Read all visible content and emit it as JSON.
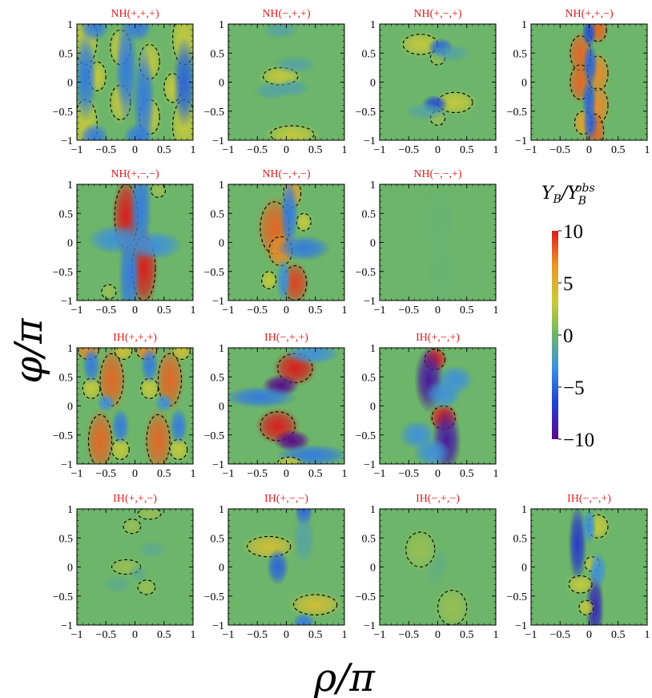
{
  "chart_data": {
    "type": "heatmap",
    "xlabel": "ρ/π",
    "ylabel": "φ/π",
    "xlim": [
      -1,
      1
    ],
    "ylim": [
      -1,
      1
    ],
    "x_ticks": [
      "−1",
      "−0.5",
      "0",
      "0.5",
      "1"
    ],
    "y_ticks": [
      "1",
      "0.5",
      "0",
      "−0.5",
      "−1"
    ],
    "colorbar": {
      "label": "Y_B/Y_B^obs",
      "range": [
        -10,
        10
      ],
      "tick_labels": [
        "10",
        "5",
        "0",
        "−5",
        "−10"
      ],
      "colors": [
        "#5a0a8a",
        "#1f3fd0",
        "#3c8fe0",
        "#6db56a",
        "#c9c93a",
        "#e89a2a",
        "#d91e1e"
      ]
    },
    "panels": [
      {
        "title": "NH(+,+,+)",
        "blobs": [
          {
            "x": -0.85,
            "y": 0.75,
            "sx": 0.08,
            "sy": 0.18,
            "v": 3
          },
          {
            "x": -0.85,
            "y": -0.75,
            "sx": 0.08,
            "sy": 0.18,
            "v": 3
          },
          {
            "x": 0.85,
            "y": 0.75,
            "sx": 0.08,
            "sy": 0.18,
            "v": 3
          },
          {
            "x": 0.85,
            "y": -0.75,
            "sx": 0.08,
            "sy": 0.18,
            "v": 3
          },
          {
            "x": -0.25,
            "y": 0.6,
            "sx": 0.07,
            "sy": 0.12,
            "v": 3
          },
          {
            "x": -0.25,
            "y": -0.35,
            "sx": 0.07,
            "sy": 0.12,
            "v": 3
          },
          {
            "x": 0.25,
            "y": 0.35,
            "sx": 0.07,
            "sy": 0.12,
            "v": 3
          },
          {
            "x": 0.25,
            "y": -0.6,
            "sx": 0.07,
            "sy": 0.12,
            "v": 3
          },
          {
            "x": -0.65,
            "y": 0.1,
            "sx": 0.06,
            "sy": 0.1,
            "v": 3
          },
          {
            "x": 0.65,
            "y": -0.1,
            "sx": 0.06,
            "sy": 0.1,
            "v": 3
          },
          {
            "x": -0.85,
            "y": 0.1,
            "sx": 0.06,
            "sy": 0.25,
            "v": -4
          },
          {
            "x": 0.85,
            "y": 0,
            "sx": 0.06,
            "sy": 0.25,
            "v": -5
          },
          {
            "x": -0.15,
            "y": 0.25,
            "sx": 0.06,
            "sy": 0.3,
            "v": -4
          },
          {
            "x": 0.15,
            "y": -0.3,
            "sx": 0.06,
            "sy": 0.3,
            "v": -4
          },
          {
            "x": -0.7,
            "y": 0.95,
            "sx": 0.08,
            "sy": 0.08,
            "v": -4
          },
          {
            "x": 0.05,
            "y": 0.95,
            "sx": 0.08,
            "sy": 0.08,
            "v": -4
          },
          {
            "x": -0.7,
            "y": -0.95,
            "sx": 0.08,
            "sy": 0.08,
            "v": -4
          },
          {
            "x": 0.05,
            "y": -0.95,
            "sx": 0.08,
            "sy": 0.08,
            "v": -4
          }
        ]
      },
      {
        "title": "NH(−,+,+)",
        "blobs": [
          {
            "x": -0.1,
            "y": 0.1,
            "sx": 0.12,
            "sy": 0.06,
            "v": 3
          },
          {
            "x": 0.1,
            "y": -0.9,
            "sx": 0.15,
            "sy": 0.06,
            "v": 3
          },
          {
            "x": 0.15,
            "y": 0.3,
            "sx": 0.12,
            "sy": 0.05,
            "v": -2
          },
          {
            "x": -0.25,
            "y": -0.15,
            "sx": 0.1,
            "sy": 0.05,
            "v": -2
          },
          {
            "x": 0.1,
            "y": -0.1,
            "sx": 0.1,
            "sy": 0.05,
            "v": -2
          },
          {
            "x": -0.1,
            "y": 0.9,
            "sx": 0.1,
            "sy": 0.05,
            "v": -2
          }
        ]
      },
      {
        "title": "NH(+,−,+)",
        "blobs": [
          {
            "x": -0.3,
            "y": 0.65,
            "sx": 0.12,
            "sy": 0.07,
            "v": 3
          },
          {
            "x": 0.3,
            "y": -0.35,
            "sx": 0.12,
            "sy": 0.07,
            "v": 3
          },
          {
            "x": 0.0,
            "y": 0.42,
            "sx": 0.05,
            "sy": 0.05,
            "v": 2
          },
          {
            "x": 0.0,
            "y": -0.62,
            "sx": 0.05,
            "sy": 0.05,
            "v": 2
          },
          {
            "x": 0.05,
            "y": 0.6,
            "sx": 0.07,
            "sy": 0.05,
            "v": -5
          },
          {
            "x": -0.05,
            "y": -0.38,
            "sx": 0.07,
            "sy": 0.05,
            "v": -6
          },
          {
            "x": 0.2,
            "y": 0.5,
            "sx": 0.12,
            "sy": 0.05,
            "v": -2
          },
          {
            "x": -0.2,
            "y": -0.5,
            "sx": 0.12,
            "sy": 0.05,
            "v": -2
          }
        ]
      },
      {
        "title": "NH(+,+,−)",
        "blobs": [
          {
            "x": -0.15,
            "y": 0.5,
            "sx": 0.07,
            "sy": 0.12,
            "v": 8
          },
          {
            "x": -0.15,
            "y": 0,
            "sx": 0.07,
            "sy": 0.12,
            "v": 8
          },
          {
            "x": 0.15,
            "y": 0.15,
            "sx": 0.07,
            "sy": 0.12,
            "v": 7
          },
          {
            "x": 0.15,
            "y": -0.4,
            "sx": 0.07,
            "sy": 0.12,
            "v": 7
          },
          {
            "x": 0.1,
            "y": -0.85,
            "sx": 0.06,
            "sy": 0.12,
            "v": 8
          },
          {
            "x": -0.1,
            "y": -0.7,
            "sx": 0.06,
            "sy": 0.08,
            "v": 6
          },
          {
            "x": 0.15,
            "y": 0.9,
            "sx": 0.06,
            "sy": 0.08,
            "v": 8
          },
          {
            "x": 0.0,
            "y": 0.85,
            "sx": 0.04,
            "sy": 0.08,
            "v": -6
          },
          {
            "x": 0.02,
            "y": 0.3,
            "sx": 0.04,
            "sy": 0.12,
            "v": -5
          },
          {
            "x": 0.0,
            "y": -0.3,
            "sx": 0.04,
            "sy": 0.12,
            "v": -5
          },
          {
            "x": 0.02,
            "y": -0.7,
            "sx": 0.04,
            "sy": 0.1,
            "v": -5
          }
        ]
      },
      {
        "title": "NH(+,−,−)",
        "blobs": [
          {
            "x": -0.15,
            "y": 0.45,
            "sx": 0.08,
            "sy": 0.22,
            "v": 10
          },
          {
            "x": 0.15,
            "y": -0.45,
            "sx": 0.08,
            "sy": 0.22,
            "v": 10
          },
          {
            "x": -0.45,
            "y": -0.85,
            "sx": 0.05,
            "sy": 0.05,
            "v": 2
          },
          {
            "x": 0.4,
            "y": 0.9,
            "sx": 0.05,
            "sy": 0.05,
            "v": 2
          },
          {
            "x": 0.1,
            "y": 0.6,
            "sx": 0.06,
            "sy": 0.3,
            "v": -4
          },
          {
            "x": -0.1,
            "y": -0.55,
            "sx": 0.06,
            "sy": 0.3,
            "v": -4
          },
          {
            "x": -0.35,
            "y": 0.05,
            "sx": 0.15,
            "sy": 0.08,
            "v": -3
          },
          {
            "x": 0.35,
            "y": -0.05,
            "sx": 0.15,
            "sy": 0.08,
            "v": -3
          }
        ]
      },
      {
        "title": "NH(−,+,−)",
        "blobs": [
          {
            "x": -0.2,
            "y": 0.25,
            "sx": 0.1,
            "sy": 0.18,
            "v": 8
          },
          {
            "x": -0.1,
            "y": -0.15,
            "sx": 0.08,
            "sy": 0.1,
            "v": 7
          },
          {
            "x": 0.15,
            "y": -0.7,
            "sx": 0.08,
            "sy": 0.12,
            "v": 9
          },
          {
            "x": 0.1,
            "y": 0.85,
            "sx": 0.06,
            "sy": 0.1,
            "v": 6
          },
          {
            "x": 0.3,
            "y": 0.35,
            "sx": 0.05,
            "sy": 0.06,
            "v": 3
          },
          {
            "x": -0.3,
            "y": -0.65,
            "sx": 0.05,
            "sy": 0.06,
            "v": 3
          },
          {
            "x": 0.05,
            "y": 0.5,
            "sx": 0.05,
            "sy": 0.2,
            "v": -4
          },
          {
            "x": 0.3,
            "y": -0.1,
            "sx": 0.15,
            "sy": 0.07,
            "v": -4
          },
          {
            "x": -0.05,
            "y": -0.65,
            "sx": 0.04,
            "sy": 0.12,
            "v": -3
          }
        ]
      },
      {
        "title": "NH(−,−,+)",
        "blobs": [
          {
            "x": 0.0,
            "y": 0.4,
            "sx": 0.1,
            "sy": 0.2,
            "v": -0.6
          },
          {
            "x": 0.1,
            "y": -0.5,
            "sx": 0.1,
            "sy": 0.2,
            "v": -0.6
          }
        ]
      },
      {
        "title": "IH(+,+,+)",
        "blobs": [
          {
            "x": -0.6,
            "y": -0.6,
            "sx": 0.08,
            "sy": 0.18,
            "v": 8
          },
          {
            "x": 0.4,
            "y": -0.6,
            "sx": 0.08,
            "sy": 0.18,
            "v": 8
          },
          {
            "x": -0.4,
            "y": 0.45,
            "sx": 0.08,
            "sy": 0.18,
            "v": 8
          },
          {
            "x": 0.6,
            "y": 0.45,
            "sx": 0.08,
            "sy": 0.18,
            "v": 8
          },
          {
            "x": -0.8,
            "y": 0.95,
            "sx": 0.07,
            "sy": 0.06,
            "v": 7
          },
          {
            "x": 0.2,
            "y": 0.95,
            "sx": 0.07,
            "sy": 0.06,
            "v": 7
          },
          {
            "x": -0.2,
            "y": 0.95,
            "sx": 0.06,
            "sy": 0.06,
            "v": 4
          },
          {
            "x": 0.8,
            "y": 0.95,
            "sx": 0.06,
            "sy": 0.06,
            "v": 4
          },
          {
            "x": -0.75,
            "y": 0.3,
            "sx": 0.06,
            "sy": 0.07,
            "v": 3
          },
          {
            "x": 0.25,
            "y": 0.3,
            "sx": 0.06,
            "sy": 0.07,
            "v": 3
          },
          {
            "x": -0.25,
            "y": -0.75,
            "sx": 0.06,
            "sy": 0.07,
            "v": 3
          },
          {
            "x": 0.75,
            "y": -0.75,
            "sx": 0.06,
            "sy": 0.07,
            "v": 3
          },
          {
            "x": -0.75,
            "y": 0.7,
            "sx": 0.05,
            "sy": 0.1,
            "v": -4
          },
          {
            "x": 0.25,
            "y": 0.7,
            "sx": 0.05,
            "sy": 0.1,
            "v": -4
          },
          {
            "x": -0.25,
            "y": -0.35,
            "sx": 0.05,
            "sy": 0.1,
            "v": -4
          },
          {
            "x": 0.75,
            "y": -0.35,
            "sx": 0.05,
            "sy": 0.1,
            "v": -4
          },
          {
            "x": -0.5,
            "y": 0.05,
            "sx": 0.05,
            "sy": 0.05,
            "v": -3
          },
          {
            "x": 0.5,
            "y": 0.05,
            "sx": 0.05,
            "sy": 0.05,
            "v": -3
          }
        ]
      },
      {
        "title": "IH(−,+,+)",
        "blobs": [
          {
            "x": 0.15,
            "y": 0.65,
            "sx": 0.12,
            "sy": 0.1,
            "v": 10
          },
          {
            "x": -0.15,
            "y": -0.35,
            "sx": 0.12,
            "sy": 0.1,
            "v": 10
          },
          {
            "x": -0.1,
            "y": 0.35,
            "sx": 0.1,
            "sy": 0.06,
            "v": -10
          },
          {
            "x": 0.1,
            "y": -0.6,
            "sx": 0.1,
            "sy": 0.06,
            "v": -10
          },
          {
            "x": -0.45,
            "y": 0.15,
            "sx": 0.2,
            "sy": 0.06,
            "v": -4
          },
          {
            "x": 0.45,
            "y": -0.85,
            "sx": 0.2,
            "sy": 0.06,
            "v": -4
          },
          {
            "x": 0.45,
            "y": 0.9,
            "sx": 0.15,
            "sy": 0.06,
            "v": -3
          },
          {
            "x": 0.05,
            "y": -0.98,
            "sx": 0.08,
            "sy": 0.04,
            "v": 3
          }
        ]
      },
      {
        "title": "IH(+,−,+)",
        "blobs": [
          {
            "x": -0.05,
            "y": 0.8,
            "sx": 0.07,
            "sy": 0.07,
            "v": 10
          },
          {
            "x": 0.1,
            "y": -0.2,
            "sx": 0.08,
            "sy": 0.08,
            "v": 10
          },
          {
            "x": -0.15,
            "y": 0.45,
            "sx": 0.08,
            "sy": 0.18,
            "v": -9
          },
          {
            "x": 0.15,
            "y": -0.6,
            "sx": 0.08,
            "sy": 0.18,
            "v": -9
          },
          {
            "x": 0.1,
            "y": 0.2,
            "sx": 0.1,
            "sy": 0.08,
            "v": -3
          },
          {
            "x": -0.1,
            "y": -0.8,
            "sx": 0.1,
            "sy": 0.08,
            "v": -3
          },
          {
            "x": 0.3,
            "y": 0.45,
            "sx": 0.1,
            "sy": 0.08,
            "v": -3
          },
          {
            "x": -0.35,
            "y": -0.5,
            "sx": 0.1,
            "sy": 0.08,
            "v": -3
          }
        ]
      },
      {
        "title": "IH(+,+,−)",
        "blobs": [
          {
            "x": -0.05,
            "y": 0.7,
            "sx": 0.06,
            "sy": 0.05,
            "v": 2
          },
          {
            "x": 0.25,
            "y": 0.92,
            "sx": 0.08,
            "sy": 0.04,
            "v": 2
          },
          {
            "x": -0.15,
            "y": 0.0,
            "sx": 0.1,
            "sy": 0.05,
            "v": 2
          },
          {
            "x": 0.2,
            "y": -0.35,
            "sx": 0.06,
            "sy": 0.05,
            "v": 2
          },
          {
            "x": -0.3,
            "y": -0.3,
            "sx": 0.08,
            "sy": 0.05,
            "v": -1.5
          },
          {
            "x": 0.3,
            "y": 0.3,
            "sx": 0.08,
            "sy": 0.05,
            "v": -1.5
          },
          {
            "x": 0.05,
            "y": -0.1,
            "sx": 0.05,
            "sy": 0.05,
            "v": -1.5
          }
        ]
      },
      {
        "title": "IH(+,−,−)",
        "blobs": [
          {
            "x": -0.3,
            "y": 0.35,
            "sx": 0.15,
            "sy": 0.07,
            "v": 4
          },
          {
            "x": 0.5,
            "y": -0.65,
            "sx": 0.15,
            "sy": 0.07,
            "v": 4
          },
          {
            "x": 0.3,
            "y": 0.95,
            "sx": 0.05,
            "sy": 0.08,
            "v": -5
          },
          {
            "x": -0.15,
            "y": 0.0,
            "sx": 0.06,
            "sy": 0.1,
            "v": -5
          },
          {
            "x": 0.3,
            "y": -0.95,
            "sx": 0.06,
            "sy": 0.05,
            "v": -4
          },
          {
            "x": 0.3,
            "y": 0.5,
            "sx": 0.06,
            "sy": 0.15,
            "v": -2
          }
        ]
      },
      {
        "title": "IH(−,+,−)",
        "blobs": [
          {
            "x": -0.3,
            "y": 0.3,
            "sx": 0.1,
            "sy": 0.12,
            "v": 2
          },
          {
            "x": 0.25,
            "y": -0.7,
            "sx": 0.1,
            "sy": 0.12,
            "v": 2
          },
          {
            "x": 0.05,
            "y": 0.1,
            "sx": 0.05,
            "sy": 0.08,
            "v": -1
          },
          {
            "x": -0.05,
            "y": -0.1,
            "sx": 0.05,
            "sy": 0.08,
            "v": -1
          }
        ]
      },
      {
        "title": "IH(−,−,+)",
        "blobs": [
          {
            "x": -0.2,
            "y": 0.4,
            "sx": 0.05,
            "sy": 0.22,
            "v": -7
          },
          {
            "x": 0.1,
            "y": -0.7,
            "sx": 0.05,
            "sy": 0.2,
            "v": -8
          },
          {
            "x": 0.15,
            "y": 0.7,
            "sx": 0.07,
            "sy": 0.08,
            "v": 3
          },
          {
            "x": 0.05,
            "y": 0.05,
            "sx": 0.05,
            "sy": 0.05,
            "v": 3
          },
          {
            "x": -0.15,
            "y": -0.3,
            "sx": 0.08,
            "sy": 0.06,
            "v": 3
          },
          {
            "x": -0.05,
            "y": -0.7,
            "sx": 0.05,
            "sy": 0.05,
            "v": 3
          },
          {
            "x": 0.0,
            "y": 0.7,
            "sx": 0.04,
            "sy": 0.1,
            "v": -3
          },
          {
            "x": 0.15,
            "y": -0.05,
            "sx": 0.05,
            "sy": 0.1,
            "v": -3
          }
        ]
      }
    ]
  }
}
